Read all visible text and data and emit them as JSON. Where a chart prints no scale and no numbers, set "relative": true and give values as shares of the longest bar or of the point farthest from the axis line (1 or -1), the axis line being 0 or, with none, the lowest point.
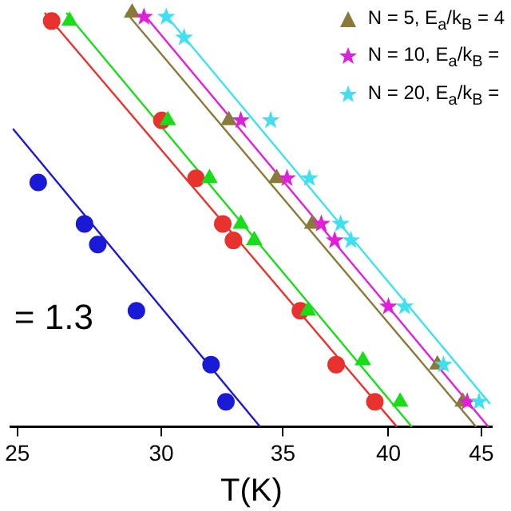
{
  "chart_data": {
    "type": "scatter",
    "xlabel": "T(K)",
    "log": "x",
    "relative": true,
    "xlim": [
      24.8,
      45.6
    ],
    "xticks": [
      25,
      30,
      35,
      40,
      45
    ],
    "grid": false,
    "legend": "top right",
    "tick_labels": "x",
    "annotations": [
      "= 1.3"
    ],
    "series": [
      {
        "color": "#1a1ad6",
        "marker": "circle",
        "x": [
          25.67,
          27.22,
          27.68,
          29.07,
          31.95,
          32.56
        ],
        "values": [
          0.59,
          0.49,
          0.44,
          0.28,
          0.15,
          0.06
        ]
      },
      {
        "color": "#e8322d",
        "marker": "circle",
        "x": [
          26.11,
          30.02,
          31.35,
          32.43,
          32.87,
          35.78,
          37.44,
          39.32
        ],
        "values": [
          0.98,
          0.74,
          0.6,
          0.49,
          0.45,
          0.28,
          0.15,
          0.06
        ]
      },
      {
        "color": "#1adc1a",
        "marker": "triangle",
        "x": [
          26.71,
          30.25,
          31.89,
          33.18,
          33.75,
          36.12,
          38.73,
          40.6
        ],
        "values": [
          0.98,
          0.74,
          0.6,
          0.49,
          0.45,
          0.28,
          0.16,
          0.06
        ]
      },
      {
        "name": "N = 5, E$_{a}$/k$_{B}$ = 4",
        "color": "#8a7a3a",
        "marker": "triangle",
        "x": [
          28.91,
          32.68,
          34.72,
          36.32,
          42.56,
          43.95
        ],
        "values": [
          1.0,
          0.74,
          0.6,
          0.49,
          0.15,
          0.06
        ]
      },
      {
        "name": "N = 10, E$_{a}$/k$_{B}$ =",
        "color": "#e020d8",
        "marker": "star",
        "x": [
          29.35,
          33.18,
          35.18,
          36.74,
          37.37,
          40.0,
          44.2
        ],
        "values": [
          0.99,
          0.74,
          0.6,
          0.49,
          0.45,
          0.29,
          0.06
        ]
      },
      {
        "name": "N = 20, E$_{a}$/k$_{B}$ =",
        "color": "#40e0f0",
        "marker": "star",
        "x": [
          30.19,
          30.88,
          34.46,
          36.19,
          37.65,
          38.15,
          40.83,
          42.89,
          44.87
        ],
        "values": [
          0.99,
          0.94,
          0.74,
          0.6,
          0.49,
          0.45,
          0.29,
          0.15,
          0.06
        ]
      },
      {
        "type": "line",
        "color": "#1a1ad6",
        "marker": "none",
        "x": [
          24.86,
          34.0
        ],
        "values": [
          0.72,
          0
        ]
      },
      {
        "type": "line",
        "color": "#e8322d",
        "marker": "none",
        "x": [
          25.88,
          40.43
        ],
        "values": [
          1,
          0
        ]
      },
      {
        "type": "line",
        "color": "#1adc1a",
        "marker": "none",
        "x": [
          26.6,
          41.2
        ],
        "values": [
          1,
          0
        ]
      },
      {
        "type": "line",
        "color": "#8a7a3a",
        "marker": "none",
        "x": [
          28.7,
          44.7
        ],
        "values": [
          1,
          0
        ]
      },
      {
        "type": "line",
        "color": "#e020d8",
        "marker": "none",
        "x": [
          29.3,
          45.4
        ],
        "values": [
          1,
          0
        ]
      },
      {
        "type": "line",
        "color": "#40e0f0",
        "marker": "none",
        "x": [
          30.1,
          45.5
        ],
        "values": [
          1,
          0.055
        ]
      }
    ]
  }
}
